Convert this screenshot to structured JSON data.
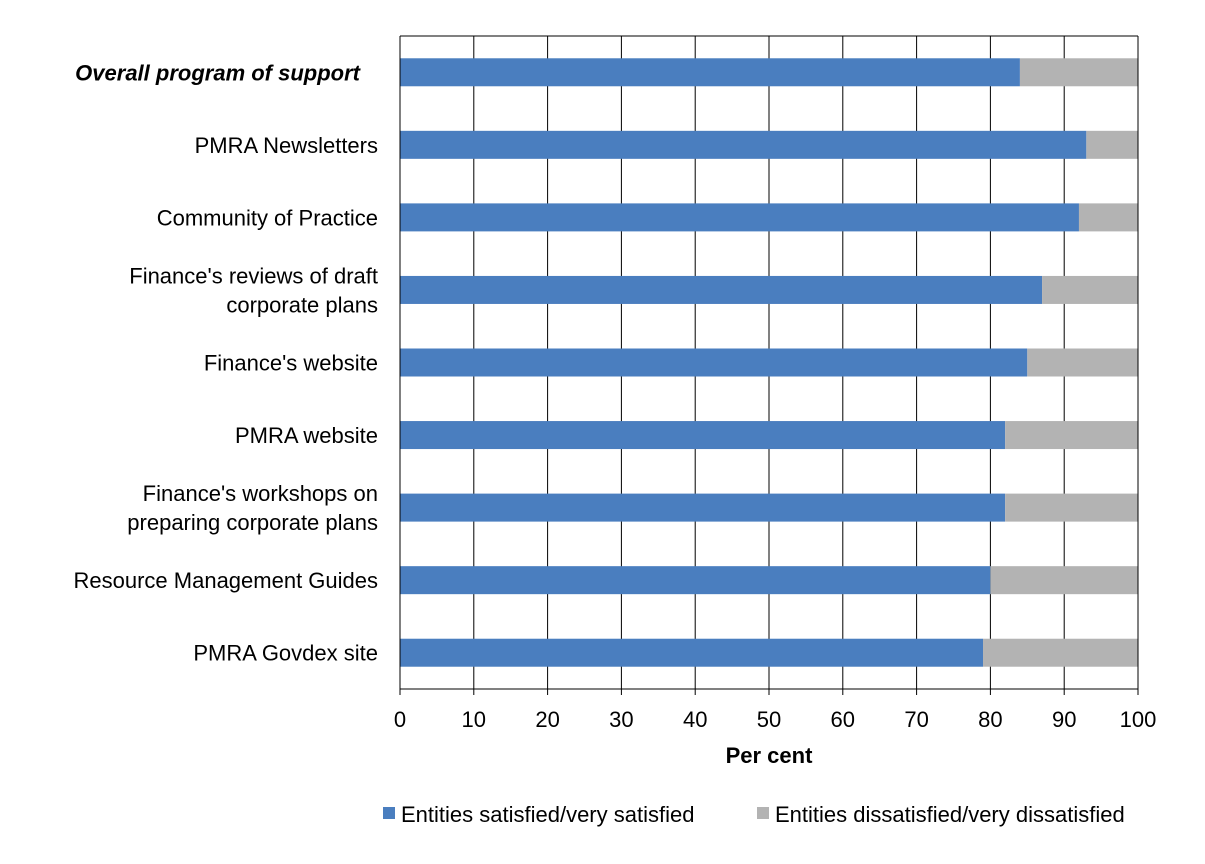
{
  "chart_data": {
    "type": "bar",
    "orientation": "horizontal",
    "stacked": true,
    "categories": [
      "Overall program of support",
      "PMRA Newsletters",
      "Community of Practice",
      "Finance's reviews of draft corporate plans",
      "Finance's website",
      "PMRA website",
      "Finance's workshops on preparing corporate plans",
      "Resource Management Guides",
      "PMRA Govdex site"
    ],
    "category_lines": [
      [
        "Overall program of support"
      ],
      [
        "PMRA Newsletters"
      ],
      [
        "Community of Practice"
      ],
      [
        "Finance's reviews of draft",
        "corporate plans"
      ],
      [
        "Finance's website"
      ],
      [
        "PMRA website"
      ],
      [
        "Finance's workshops on",
        "preparing corporate plans"
      ],
      [
        "Resource Management Guides"
      ],
      [
        "PMRA Govdex site"
      ]
    ],
    "emphasized_category": "Overall program of support",
    "series": [
      {
        "name": "Entities satisfied/very satisfied",
        "color": "#4a7ebf",
        "values": [
          84,
          93,
          92,
          87,
          85,
          82,
          82,
          80,
          79
        ]
      },
      {
        "name": "Entities dissatisfied/very dissatisfied",
        "color": "#b3b3b3",
        "values": [
          16,
          7,
          8,
          13,
          15,
          18,
          18,
          20,
          21
        ]
      }
    ],
    "xlabel": "Per cent",
    "ylabel": "",
    "xlim": [
      0,
      100
    ],
    "xticks": [
      "0",
      "10",
      "20",
      "30",
      "40",
      "50",
      "60",
      "70",
      "80",
      "90",
      "100"
    ],
    "grid": "vertical",
    "legend": "bottom"
  }
}
